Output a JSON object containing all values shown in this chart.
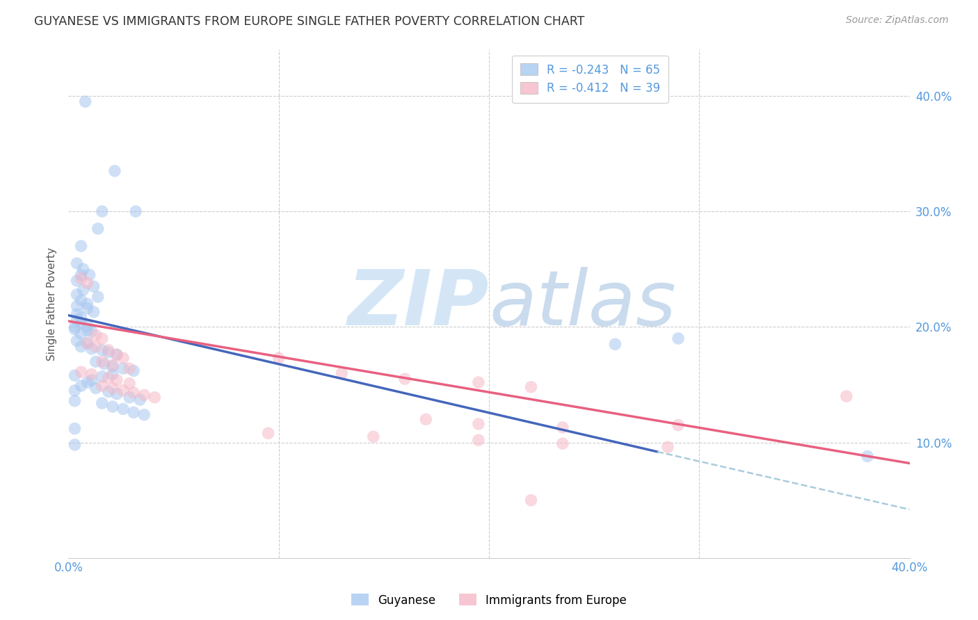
{
  "title": "GUYANESE VS IMMIGRANTS FROM EUROPE SINGLE FATHER POVERTY CORRELATION CHART",
  "source": "Source: ZipAtlas.com",
  "ylabel": "Single Father Poverty",
  "ytick_values": [
    0.1,
    0.2,
    0.3,
    0.4
  ],
  "xlim": [
    0.0,
    0.4
  ],
  "ylim": [
    0.0,
    0.44
  ],
  "legend_entries": [
    {
      "label": "R = -0.243   N = 65",
      "color": "#A8C8F0"
    },
    {
      "label": "R = -0.412   N = 39",
      "color": "#F5B8C8"
    }
  ],
  "legend_label_guyanese": "Guyanese",
  "legend_label_europe": "Immigrants from Europe",
  "blue_color": "#A8C8F0",
  "pink_color": "#F5B8C8",
  "line_blue": "#4466BB",
  "line_pink": "#E86080",
  "line_dashed_color": "#AACCDD",
  "background_color": "#FFFFFF",
  "grid_color": "#CCCCCC",
  "title_color": "#333333",
  "source_color": "#999999",
  "blue_points": [
    [
      0.008,
      0.395
    ],
    [
      0.022,
      0.335
    ],
    [
      0.014,
      0.285
    ],
    [
      0.006,
      0.27
    ],
    [
      0.016,
      0.3
    ],
    [
      0.032,
      0.3
    ],
    [
      0.004,
      0.255
    ],
    [
      0.007,
      0.25
    ],
    [
      0.006,
      0.245
    ],
    [
      0.01,
      0.245
    ],
    [
      0.004,
      0.24
    ],
    [
      0.012,
      0.235
    ],
    [
      0.007,
      0.232
    ],
    [
      0.004,
      0.228
    ],
    [
      0.014,
      0.226
    ],
    [
      0.006,
      0.223
    ],
    [
      0.009,
      0.22
    ],
    [
      0.004,
      0.218
    ],
    [
      0.009,
      0.216
    ],
    [
      0.012,
      0.213
    ],
    [
      0.004,
      0.211
    ],
    [
      0.006,
      0.208
    ],
    [
      0.004,
      0.206
    ],
    [
      0.006,
      0.203
    ],
    [
      0.009,
      0.201
    ],
    [
      0.003,
      0.198
    ],
    [
      0.009,
      0.197
    ],
    [
      0.011,
      0.196
    ],
    [
      0.006,
      0.194
    ],
    [
      0.003,
      0.2
    ],
    [
      0.004,
      0.188
    ],
    [
      0.009,
      0.186
    ],
    [
      0.006,
      0.183
    ],
    [
      0.011,
      0.181
    ],
    [
      0.016,
      0.18
    ],
    [
      0.019,
      0.178
    ],
    [
      0.023,
      0.176
    ],
    [
      0.013,
      0.17
    ],
    [
      0.017,
      0.168
    ],
    [
      0.021,
      0.166
    ],
    [
      0.026,
      0.164
    ],
    [
      0.031,
      0.162
    ],
    [
      0.021,
      0.159
    ],
    [
      0.016,
      0.157
    ],
    [
      0.011,
      0.154
    ],
    [
      0.009,
      0.152
    ],
    [
      0.006,
      0.149
    ],
    [
      0.013,
      0.147
    ],
    [
      0.019,
      0.144
    ],
    [
      0.023,
      0.142
    ],
    [
      0.029,
      0.139
    ],
    [
      0.034,
      0.137
    ],
    [
      0.016,
      0.134
    ],
    [
      0.021,
      0.131
    ],
    [
      0.026,
      0.129
    ],
    [
      0.031,
      0.126
    ],
    [
      0.036,
      0.124
    ],
    [
      0.003,
      0.158
    ],
    [
      0.003,
      0.145
    ],
    [
      0.003,
      0.136
    ],
    [
      0.003,
      0.112
    ],
    [
      0.003,
      0.098
    ],
    [
      0.29,
      0.19
    ],
    [
      0.26,
      0.185
    ],
    [
      0.38,
      0.088
    ]
  ],
  "pink_points": [
    [
      0.006,
      0.242
    ],
    [
      0.009,
      0.238
    ],
    [
      0.013,
      0.193
    ],
    [
      0.016,
      0.19
    ],
    [
      0.009,
      0.186
    ],
    [
      0.013,
      0.183
    ],
    [
      0.019,
      0.18
    ],
    [
      0.023,
      0.176
    ],
    [
      0.026,
      0.173
    ],
    [
      0.016,
      0.17
    ],
    [
      0.021,
      0.167
    ],
    [
      0.029,
      0.164
    ],
    [
      0.006,
      0.161
    ],
    [
      0.011,
      0.159
    ],
    [
      0.019,
      0.156
    ],
    [
      0.023,
      0.154
    ],
    [
      0.029,
      0.151
    ],
    [
      0.016,
      0.149
    ],
    [
      0.021,
      0.147
    ],
    [
      0.026,
      0.145
    ],
    [
      0.031,
      0.143
    ],
    [
      0.036,
      0.141
    ],
    [
      0.041,
      0.139
    ],
    [
      0.1,
      0.173
    ],
    [
      0.13,
      0.16
    ],
    [
      0.16,
      0.155
    ],
    [
      0.195,
      0.152
    ],
    [
      0.22,
      0.148
    ],
    [
      0.17,
      0.12
    ],
    [
      0.195,
      0.116
    ],
    [
      0.235,
      0.113
    ],
    [
      0.095,
      0.108
    ],
    [
      0.145,
      0.105
    ],
    [
      0.195,
      0.102
    ],
    [
      0.235,
      0.099
    ],
    [
      0.285,
      0.096
    ],
    [
      0.37,
      0.14
    ],
    [
      0.29,
      0.115
    ],
    [
      0.22,
      0.05
    ]
  ],
  "blue_line_x": [
    0.0,
    0.28
  ],
  "blue_line_y": [
    0.21,
    0.092
  ],
  "pink_line_x": [
    0.0,
    0.4
  ],
  "pink_line_y": [
    0.205,
    0.082
  ],
  "dashed_line_x": [
    0.28,
    0.4
  ],
  "dashed_line_y": [
    0.092,
    0.042
  ],
  "marker_size": 160,
  "alpha": 0.55,
  "tick_color": "#5599DD",
  "axis_label_color": "#555555"
}
